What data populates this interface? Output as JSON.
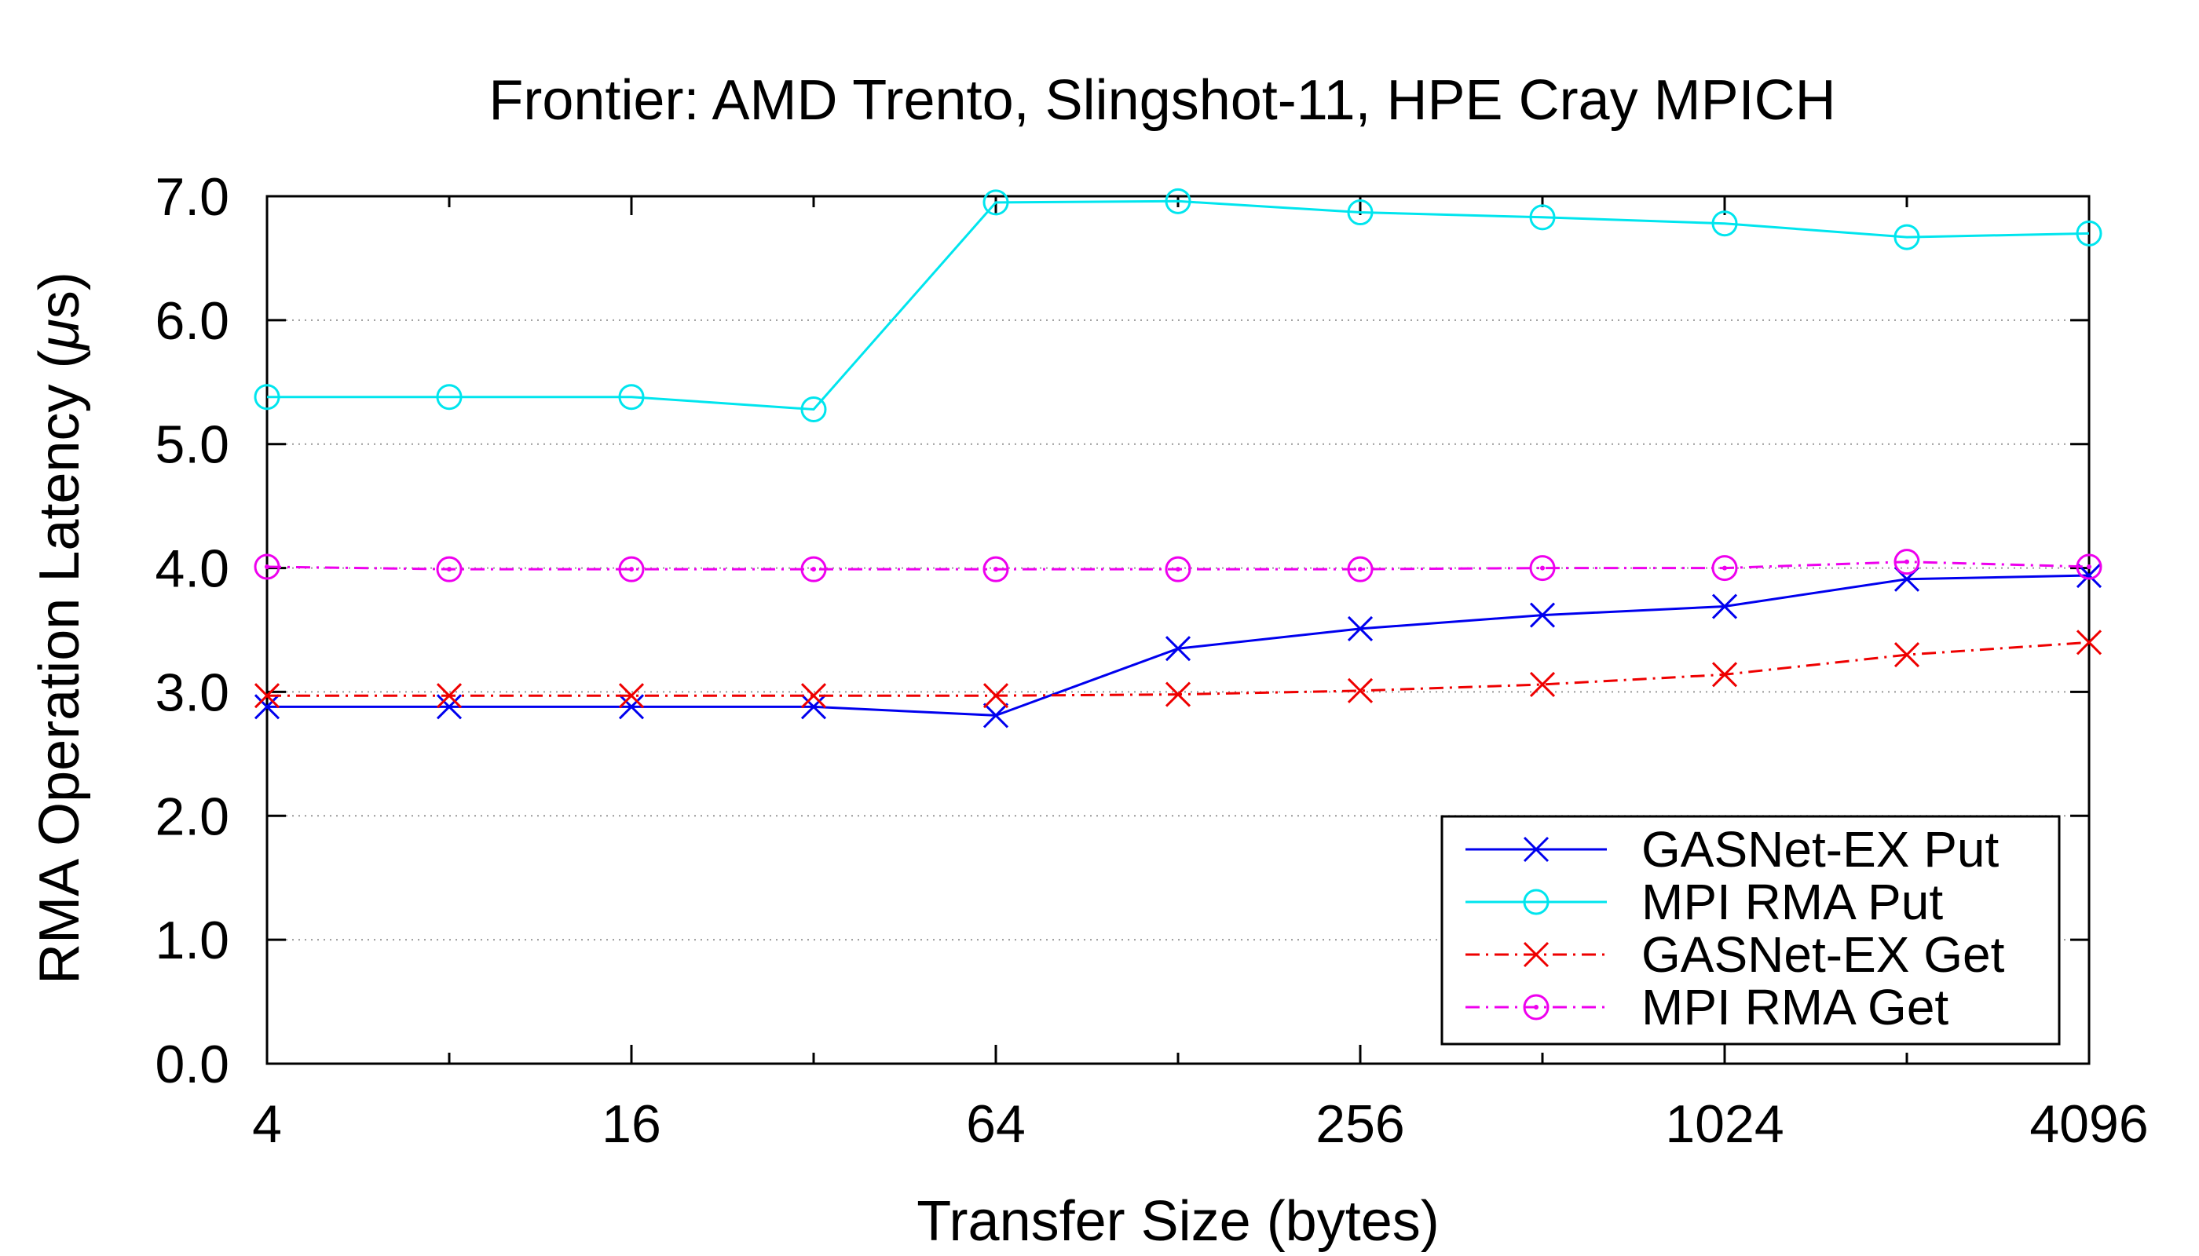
{
  "chart_data": {
    "type": "line",
    "title": "Frontier: AMD Trento, Slingshot-11, HPE Cray MPICH",
    "xlabel": "Transfer Size (bytes)",
    "ylabel_main": "RMA Operation Latency (",
    "ylabel_mu": "μ",
    "ylabel_tail": "s)",
    "x_scale": "log2",
    "x": [
      4,
      8,
      16,
      32,
      64,
      128,
      256,
      512,
      1024,
      2048,
      4096
    ],
    "xticks": [
      4,
      16,
      64,
      256,
      1024,
      4096
    ],
    "xtick_labels": [
      "4",
      "16",
      "64",
      "256",
      "1024",
      "4096"
    ],
    "ylim": [
      0,
      7
    ],
    "yticks": [
      0,
      1,
      2,
      3,
      4,
      5,
      6,
      7
    ],
    "ytick_labels": [
      "0.0",
      "1.0",
      "2.0",
      "3.0",
      "4.0",
      "5.0",
      "6.0",
      "7.0"
    ],
    "grid": "horizontal dotted",
    "legend_position": "bottom-right",
    "series": [
      {
        "name": "GASNet-EX Put",
        "color": "#0000ee",
        "dash": "solid",
        "marker": "x",
        "values": [
          2.88,
          2.88,
          2.88,
          2.88,
          2.81,
          3.35,
          3.51,
          3.62,
          3.69,
          3.91,
          3.94
        ]
      },
      {
        "name": "MPI RMA Put",
        "color": "#00e5ee",
        "dash": "solid",
        "marker": "circle",
        "values": [
          5.38,
          5.38,
          5.38,
          5.28,
          6.95,
          6.96,
          6.87,
          6.83,
          6.78,
          6.67,
          6.7
        ]
      },
      {
        "name": "GASNet-EX Get",
        "color": "#ee0000",
        "dash": "dashdot",
        "marker": "x",
        "values": [
          2.97,
          2.97,
          2.97,
          2.97,
          2.97,
          2.98,
          3.01,
          3.06,
          3.14,
          3.3,
          3.4
        ]
      },
      {
        "name": "MPI RMA Get",
        "color": "#ee00ee",
        "dash": "dashdot",
        "marker": "circle-dot",
        "values": [
          4.01,
          3.99,
          3.99,
          3.99,
          3.99,
          3.99,
          3.99,
          4.0,
          4.0,
          4.05,
          4.01
        ]
      }
    ]
  }
}
